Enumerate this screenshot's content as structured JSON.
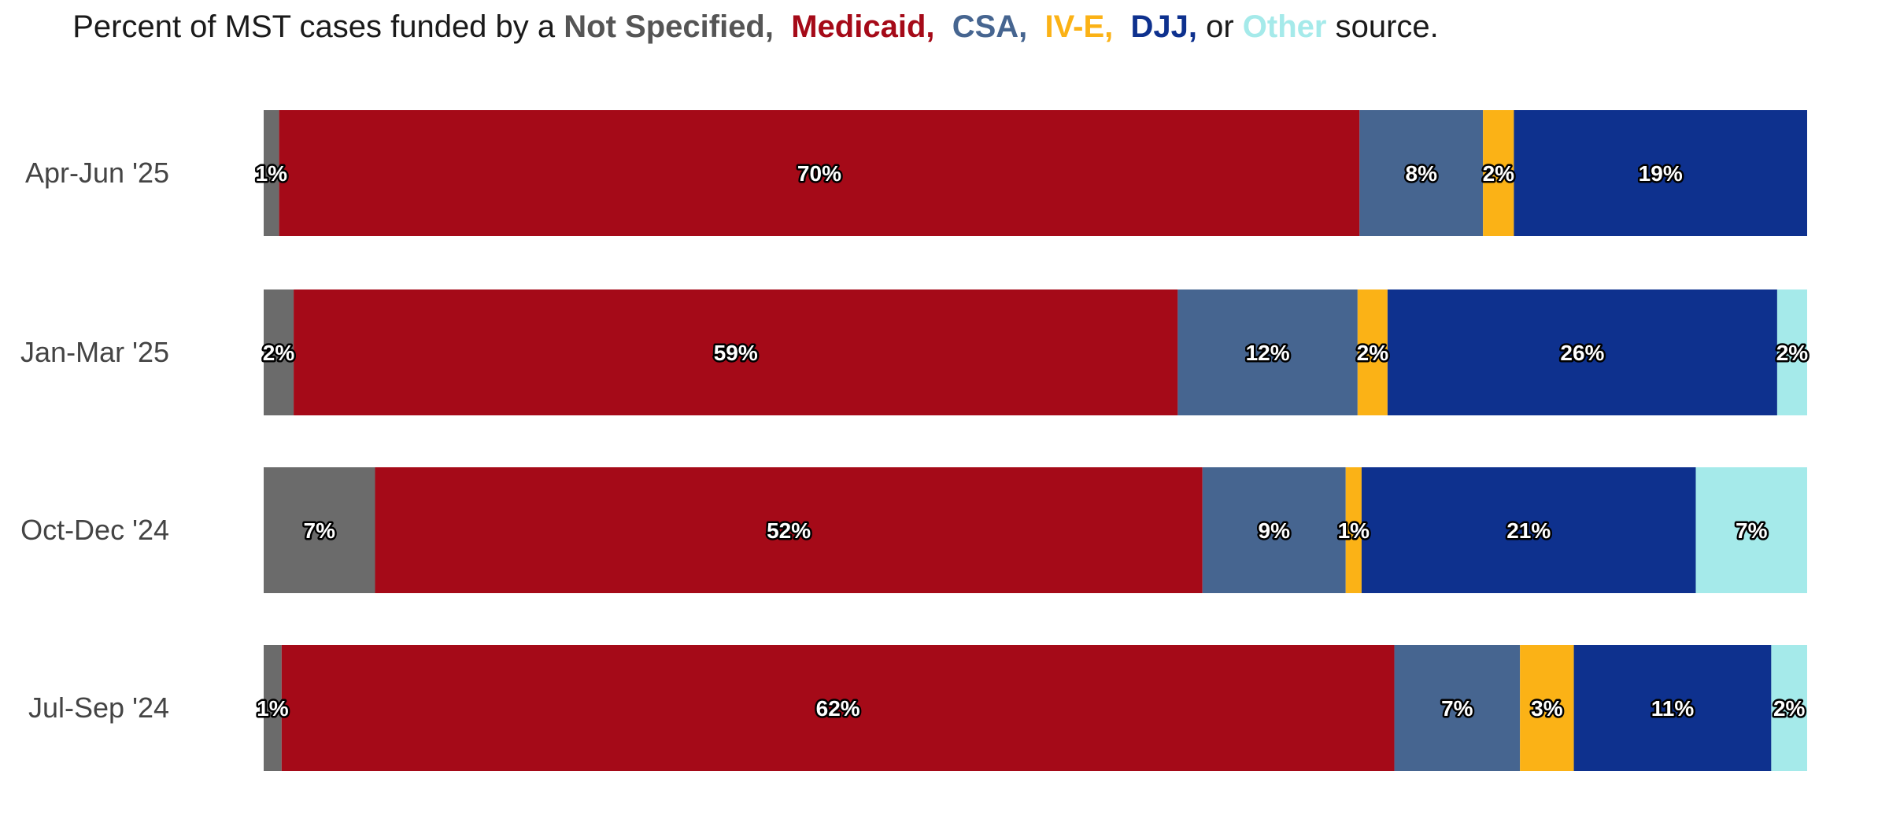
{
  "chart_data": {
    "type": "bar",
    "orientation": "horizontal",
    "stacked": true,
    "title": {
      "prefix": "Percent of MST cases funded by a",
      "separator": ",",
      "or_word": "or",
      "suffix": "source."
    },
    "categories": [
      "Apr-Jun '25",
      "Jan-Mar '25",
      "Oct-Dec '24",
      "Jul-Sep '24"
    ],
    "series": [
      {
        "name": "Not Specified",
        "color": "#6b6b6b",
        "title_color": "#555555",
        "values": [
          1,
          2,
          7,
          1
        ],
        "labels": [
          "1%",
          "2%",
          "7%",
          "1%"
        ]
      },
      {
        "name": "Medicaid",
        "color": "#a50a18",
        "title_color": "#a50a18",
        "values": [
          70,
          59,
          52,
          62
        ],
        "labels": [
          "70%",
          "59%",
          "52%",
          "62%"
        ]
      },
      {
        "name": "CSA",
        "color": "#466590",
        "title_color": "#466590",
        "values": [
          8,
          12,
          9,
          7
        ],
        "labels": [
          "8%",
          "12%",
          "9%",
          "7%"
        ]
      },
      {
        "name": "IV-E",
        "color": "#fbb216",
        "title_color": "#fbb216",
        "values": [
          2,
          2,
          1,
          3
        ],
        "labels": [
          "2%",
          "2%",
          "1%",
          "3%"
        ]
      },
      {
        "name": "DJJ",
        "color": "#0e318e",
        "title_color": "#0e318e",
        "values": [
          19,
          26,
          21,
          11
        ],
        "labels": [
          "19%",
          "26%",
          "21%",
          "11%"
        ]
      },
      {
        "name": "Other",
        "color": "#a5eaea",
        "title_color": "#a5eaea",
        "values": [
          0,
          2,
          7,
          2
        ],
        "labels": [
          "",
          "2%",
          "7%",
          "2%"
        ]
      }
    ],
    "xlim": [
      0,
      100
    ],
    "grid": false,
    "legend": "inline-title"
  }
}
